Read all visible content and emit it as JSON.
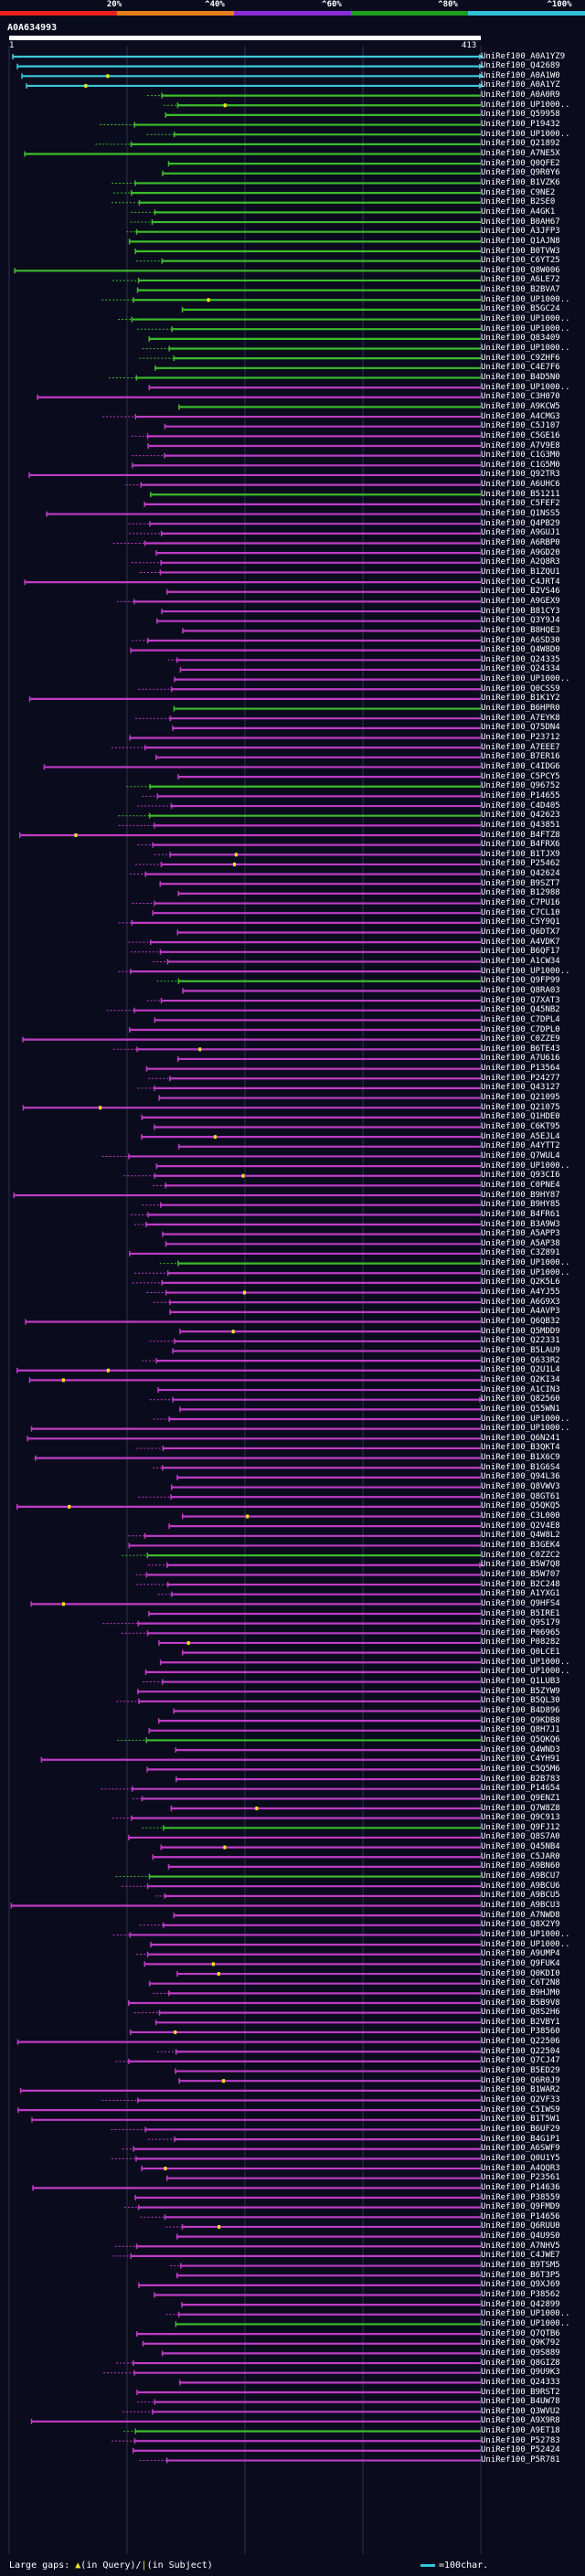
{
  "scale": {
    "labels": [
      "20%",
      "^40%",
      "^60%",
      "^80%",
      "^100%"
    ],
    "colors": [
      "#e8201c",
      "#e67e1a",
      "#8a2bd8",
      "#1ea01e",
      "#30c0d8"
    ]
  },
  "query": {
    "id": "A0A634993",
    "start": "1",
    "end": "413"
  },
  "colors": {
    "background": "#0b0b1e",
    "grid": "#2a3250",
    "cyan": "#3cc9d9",
    "green": "#3cbd2a",
    "purple": "#bf3cc4",
    "marker": "#f0e81e"
  },
  "hits": [
    "UniRef100_A0A1YZ9",
    "UniRef100_Q42689",
    "UniRef100_A0A1W0",
    "UniRef100_A0A1YZ",
    "UniRef100_A0A0R9",
    "UniRef100_UP1000..",
    "UniRef100_Q59958",
    "UniRef100_P19432",
    "UniRef100_UP1000..",
    "UniRef100_Q21892",
    "UniRef100_A7NE5X",
    "UniRef100_Q0QFE2",
    "UniRef100_Q9R0Y6",
    "UniRef100_B1VZK6",
    "UniRef100_C9NE2",
    "UniRef100_B2SE0",
    "UniRef100_A4GK1",
    "UniRef100_B0AH67",
    "UniRef100_A3JFP3",
    "UniRef100_Q1AJN8",
    "UniRef100_B0TVW3",
    "UniRef100_C6YT25",
    "UniRef100_Q8W006",
    "UniRef100_A6LE72",
    "UniRef100_B2BVA7",
    "UniRef100_UP1000..",
    "UniRef100_B5GC24",
    "UniRef100_UP1000..",
    "UniRef100_UP1000..",
    "UniRef100_Q83409",
    "UniRef100_UP1000..",
    "UniRef100_C9ZHF6",
    "UniRef100_C4E7F6",
    "UniRef100_B4D5N0",
    "UniRef100_UP1000..",
    "UniRef100_C3H070",
    "UniRef100_A9KCW5",
    "UniRef100_A4CMG3",
    "UniRef100_C5J107",
    "UniRef100_C5GE16",
    "UniRef100_A7V9E8",
    "UniRef100_C1G3M0",
    "UniRef100_C1G5M0",
    "UniRef100_Q92TR3",
    "UniRef100_A6UHC6",
    "UniRef100_B51211",
    "UniRef100_C5FEF2",
    "UniRef100_Q1NSS5",
    "UniRef100_Q4PB29",
    "UniRef100_A9GUJ1",
    "UniRef100_A6RBP0",
    "UniRef100_A9GD20",
    "UniRef100_A2Q8R3",
    "UniRef100_B1ZQU1",
    "UniRef100_C4JRT4",
    "UniRef100_B2VS46",
    "UniRef100_A9GEX9",
    "UniRef100_B81CY3",
    "UniRef100_Q3Y9J4",
    "UniRef100_B8HQE3",
    "UniRef100_A6SD30",
    "UniRef100_Q4W8D0",
    "UniRef100_Q24335",
    "UniRef100_Q24334",
    "UniRef100_UP1000..",
    "UniRef100_Q0CSS9",
    "UniRef100_B1K1Y2",
    "UniRef100_B6HPR0",
    "UniRef100_A7EYK8",
    "UniRef100_Q75DN4",
    "UniRef100_P23712",
    "UniRef100_A7EEE7",
    "UniRef100_B7ER16",
    "UniRef100_C4IDG6",
    "UniRef100_C5PCY5",
    "UniRef100_Q96752",
    "UniRef100_P14655",
    "UniRef100_C4D405",
    "UniRef100_Q42623",
    "UniRef100_Q43851",
    "UniRef100_B4FTZ8",
    "UniRef100_B4FRX6",
    "UniRef100_B1TJX9",
    "UniRef100_P25462",
    "UniRef100_Q42624",
    "UniRef100_B9SZT7",
    "UniRef100_B12988",
    "UniRef100_C7PU16",
    "UniRef100_C7CL10",
    "UniRef100_C5Y9Q1",
    "UniRef100_Q6DTX7",
    "UniRef100_A4VDK7",
    "UniRef100_B6QF17",
    "UniRef100_A1CW34",
    "UniRef100_UP1000..",
    "UniRef100_Q9FP99",
    "UniRef100_Q8RA03",
    "UniRef100_Q7XAT3",
    "UniRef100_Q45NB2",
    "UniRef100_C7DPL4",
    "UniRef100_C7DPL0",
    "UniRef100_C0ZZE9",
    "UniRef100_B6TE43",
    "UniRef100_A7U616",
    "UniRef100_P13564",
    "UniRef100_P24277",
    "UniRef100_Q43127",
    "UniRef100_Q21095",
    "UniRef100_Q21075",
    "UniRef100_Q1HDE0",
    "UniRef100_C6KT95",
    "UniRef100_A5EJL4",
    "UniRef100_A4YTT2",
    "UniRef100_Q7WUL4",
    "UniRef100_UP1000..",
    "UniRef100_Q93CI6",
    "UniRef100_C0PNE4",
    "UniRef100_B9HY87",
    "UniRef100_B9HY85",
    "UniRef100_B4FR61",
    "UniRef100_B3A9W3",
    "UniRef100_A5APP3",
    "UniRef100_A5AP38",
    "UniRef100_C3Z891",
    "UniRef100_UP1000..",
    "UniRef100_UP1000..",
    "UniRef100_Q2K5L6",
    "UniRef100_A4YJ55",
    "UniRef100_A6G9X3",
    "UniRef100_A4AVP3",
    "UniRef100_Q6QB32",
    "UniRef100_Q5MDD9",
    "UniRef100_Q22331",
    "UniRef100_B5LAU9",
    "UniRef100_Q633R2",
    "UniRef100_Q2U1L4",
    "UniRef100_Q2KI34",
    "UniRef100_A1CIN3",
    "UniRef100_Q82560",
    "UniRef100_Q55WN1",
    "UniRef100_UP1000..",
    "UniRef100_UP1000..",
    "UniRef100_Q6N241",
    "UniRef100_B3QKT4",
    "UniRef100_B1X6C9",
    "UniRef100_B1G6S4",
    "UniRef100_Q94L36",
    "UniRef100_Q8VWV3",
    "UniRef100_Q8GT61",
    "UniRef100_Q5QKQ5",
    "UniRef100_C3L000",
    "UniRef100_Q2V4E8",
    "UniRef100_Q4W8L2",
    "UniRef100_B3GEK4",
    "UniRef100_C0ZZC2",
    "UniRef100_B5W7Q8",
    "UniRef100_B5W707",
    "UniRef100_B2C248",
    "UniRef100_A1YXG1",
    "UniRef100_Q9HFS4",
    "UniRef100_B5IRE1",
    "UniRef100_Q9S179",
    "UniRef100_P06965",
    "UniRef100_P08282",
    "UniRef100_Q0LCE1",
    "UniRef100_UP1000..",
    "UniRef100_UP1000..",
    "UniRef100_Q1LUB3",
    "UniRef100_B5ZYW9",
    "UniRef100_B5QL30",
    "UniRef100_B4D896",
    "UniRef100_Q9KDB8",
    "UniRef100_Q8H7J1",
    "UniRef100_Q5QKQ6",
    "UniRef100_Q4WND3",
    "UniRef100_C4YH91",
    "UniRef100_C5Q5M6",
    "UniRef100_B2B783",
    "UniRef100_P14654",
    "UniRef100_Q9ENZ1",
    "UniRef100_Q7W8Z8",
    "UniRef100_Q9C913",
    "UniRef100_Q9FJ12",
    "UniRef100_Q8S7A0",
    "UniRef100_Q45NB4",
    "UniRef100_C5JAR0",
    "UniRef100_A9BN60",
    "UniRef100_A9BCU7",
    "UniRef100_A9BCU6",
    "UniRef100_A9BCU5",
    "UniRef100_A9BCU3",
    "UniRef100_A7NWD8",
    "UniRef100_Q8X2Y9",
    "UniRef100_UP1000..",
    "UniRef100_UP1000..",
    "UniRef100_A9UMP4",
    "UniRef100_Q9FUK4",
    "UniRef100_Q0KDI0",
    "UniRef100_C6T2N8",
    "UniRef100_B9HJM0",
    "UniRef100_B5B9V8",
    "UniRef100_Q8S2H6",
    "UniRef100_B2VBY1",
    "UniRef100_P38560",
    "UniRef100_Q22506",
    "UniRef100_Q22504",
    "UniRef100_Q7CJ47",
    "UniRef100_B5ED29",
    "UniRef100_Q6R0J9",
    "UniRef100_B1WAR2",
    "UniRef100_Q2VF33",
    "UniRef100_C5IWS9",
    "UniRef100_B1T5W1",
    "UniRef100_B6UF29",
    "UniRef100_B4G1P1",
    "UniRef100_A6SWF9",
    "UniRef100_Q0U1Y5",
    "UniRef100_A4QQR3",
    "UniRef100_P23561",
    "UniRef100_P14636",
    "UniRef100_P38559",
    "UniRef100_Q9FMD9",
    "UniRef100_P14656",
    "UniRef100_Q6RUU0",
    "UniRef100_Q4U9S0",
    "UniRef100_A7NHV5",
    "UniRef100_C4JWE7",
    "UniRef100_B9TSM5",
    "UniRef100_B6T3P5",
    "UniRef100_Q9XJ69",
    "UniRef100_P38562",
    "UniRef100_Q42899",
    "UniRef100_UP1000..",
    "UniRef100_UP1000..",
    "UniRef100_Q7QTB6",
    "UniRef100_Q9K792",
    "UniRef100_Q9S889",
    "UniRef100_Q8GIZ8",
    "UniRef100_Q9U9K3",
    "UniRef100_Q24333",
    "UniRef100_B9RST2",
    "UniRef100_B4UW78",
    "UniRef100_Q3WVU2",
    "UniRef100_A9X9R8",
    "UniRef100_A9ET18",
    "UniRef100_P52783",
    "UniRef100_P52424",
    "UniRef100_P5R781"
  ],
  "footer": {
    "large_gaps_label": "Large gaps:",
    "in_query_label": "(in Query)/",
    "in_subject_label": "(in Subject)",
    "scale_label": "=100char."
  }
}
